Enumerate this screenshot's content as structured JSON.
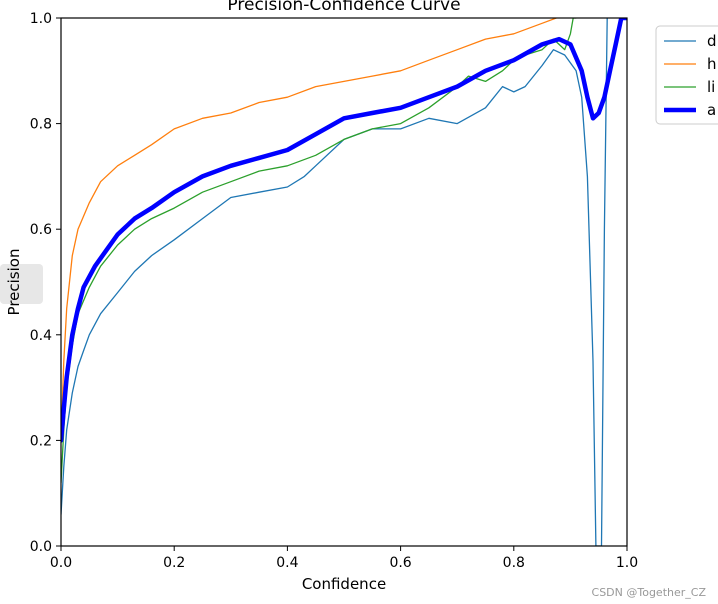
{
  "chart_data": {
    "type": "line",
    "title": "Precision-Confidence Curve",
    "xlabel": "Confidence",
    "ylabel": "Precision",
    "xlim": [
      0,
      1
    ],
    "ylim": [
      0,
      1
    ],
    "xticks": [
      "0.0",
      "0.2",
      "0.4",
      "0.6",
      "0.8",
      "1.0"
    ],
    "yticks": [
      "0.0",
      "0.2",
      "0.4",
      "0.6",
      "0.8",
      "1.0"
    ],
    "grid": false,
    "legend_position": "top-right, outside plot (clipped)",
    "series": [
      {
        "name": "d",
        "color": "#1f77b4",
        "linewidth": 1.3,
        "x": [
          0.0,
          0.005,
          0.01,
          0.02,
          0.03,
          0.04,
          0.05,
          0.07,
          0.1,
          0.13,
          0.16,
          0.2,
          0.25,
          0.3,
          0.35,
          0.4,
          0.43,
          0.45,
          0.5,
          0.55,
          0.6,
          0.65,
          0.7,
          0.75,
          0.78,
          0.8,
          0.82,
          0.85,
          0.87,
          0.89,
          0.91,
          0.92,
          0.93,
          0.94,
          0.945,
          0.95,
          0.955,
          0.96,
          0.965
        ],
        "y": [
          0.06,
          0.15,
          0.22,
          0.29,
          0.34,
          0.37,
          0.4,
          0.44,
          0.48,
          0.52,
          0.55,
          0.58,
          0.62,
          0.66,
          0.67,
          0.68,
          0.7,
          0.72,
          0.77,
          0.79,
          0.79,
          0.81,
          0.8,
          0.83,
          0.87,
          0.86,
          0.87,
          0.91,
          0.94,
          0.93,
          0.9,
          0.85,
          0.7,
          0.35,
          0.0,
          0.0,
          0.0,
          0.6,
          1.0
        ]
      },
      {
        "name": "h",
        "color": "#ff7f0e",
        "linewidth": 1.3,
        "x": [
          0.0,
          0.005,
          0.01,
          0.02,
          0.03,
          0.05,
          0.07,
          0.1,
          0.13,
          0.16,
          0.2,
          0.25,
          0.3,
          0.35,
          0.4,
          0.45,
          0.5,
          0.55,
          0.6,
          0.65,
          0.7,
          0.75,
          0.8,
          0.85,
          0.875
        ],
        "y": [
          0.2,
          0.35,
          0.45,
          0.55,
          0.6,
          0.65,
          0.69,
          0.72,
          0.74,
          0.76,
          0.79,
          0.81,
          0.82,
          0.84,
          0.85,
          0.87,
          0.88,
          0.89,
          0.9,
          0.92,
          0.94,
          0.96,
          0.97,
          0.99,
          1.0
        ]
      },
      {
        "name": "li",
        "color": "#2ca02c",
        "linewidth": 1.3,
        "x": [
          0.0,
          0.005,
          0.01,
          0.02,
          0.03,
          0.05,
          0.07,
          0.1,
          0.13,
          0.16,
          0.2,
          0.25,
          0.3,
          0.35,
          0.4,
          0.45,
          0.5,
          0.55,
          0.6,
          0.65,
          0.7,
          0.72,
          0.75,
          0.78,
          0.8,
          0.82,
          0.85,
          0.87,
          0.88,
          0.89,
          0.9,
          0.905,
          0.91
        ],
        "y": [
          0.12,
          0.22,
          0.3,
          0.38,
          0.44,
          0.49,
          0.53,
          0.57,
          0.6,
          0.62,
          0.64,
          0.67,
          0.69,
          0.71,
          0.72,
          0.74,
          0.77,
          0.79,
          0.8,
          0.83,
          0.87,
          0.89,
          0.88,
          0.9,
          0.92,
          0.93,
          0.94,
          0.96,
          0.95,
          0.94,
          0.97,
          1.0,
          1.0
        ]
      },
      {
        "name": "a",
        "color": "#0000ff",
        "linewidth": 4.5,
        "x": [
          0.0,
          0.005,
          0.01,
          0.02,
          0.03,
          0.04,
          0.06,
          0.08,
          0.1,
          0.13,
          0.16,
          0.2,
          0.25,
          0.3,
          0.35,
          0.4,
          0.45,
          0.5,
          0.55,
          0.6,
          0.65,
          0.7,
          0.75,
          0.8,
          0.85,
          0.88,
          0.9,
          0.92,
          0.93,
          0.94,
          0.95,
          0.96,
          0.97,
          0.98,
          0.99,
          1.0
        ],
        "y": [
          0.2,
          0.26,
          0.32,
          0.4,
          0.45,
          0.49,
          0.53,
          0.56,
          0.59,
          0.62,
          0.64,
          0.67,
          0.7,
          0.72,
          0.735,
          0.75,
          0.78,
          0.81,
          0.82,
          0.83,
          0.85,
          0.87,
          0.9,
          0.92,
          0.95,
          0.96,
          0.95,
          0.9,
          0.85,
          0.81,
          0.82,
          0.85,
          0.9,
          0.95,
          1.0,
          1.0
        ]
      }
    ]
  },
  "side_tab": "",
  "watermark": "CSDN @Together_CZ"
}
